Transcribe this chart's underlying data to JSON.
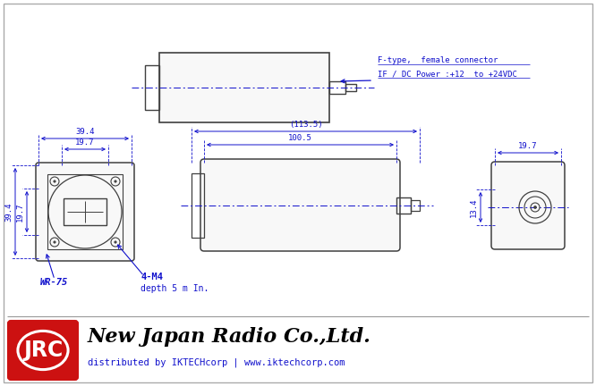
{
  "bg_color": "#ffffff",
  "line_color": "#1010cc",
  "body_line_color": "#404040",
  "dim_color": "#1010cc",
  "jrc_red": "#cc1111",
  "title_text": "New Japan Radio Co.,Ltd.",
  "subtitle_text": "distributed by IKTECHcorp | www.iktechcorp.com",
  "connector_label1": "F-type,  female connector",
  "connector_label2": "IF / DC Power :+12  to +24VDC",
  "dim_39_4": "39.4",
  "dim_19_7h": "19.7",
  "dim_19_7v": "19.7",
  "dim_19_7r": "19.7",
  "dim_39_4v": "39.4",
  "dim_113_5": "(113.5)",
  "dim_100_5": "100.5",
  "dim_13_4": "13.4",
  "label_wr75": "WR-75",
  "label_4m4": "4-M4",
  "label_depth": "depth 5 m In."
}
